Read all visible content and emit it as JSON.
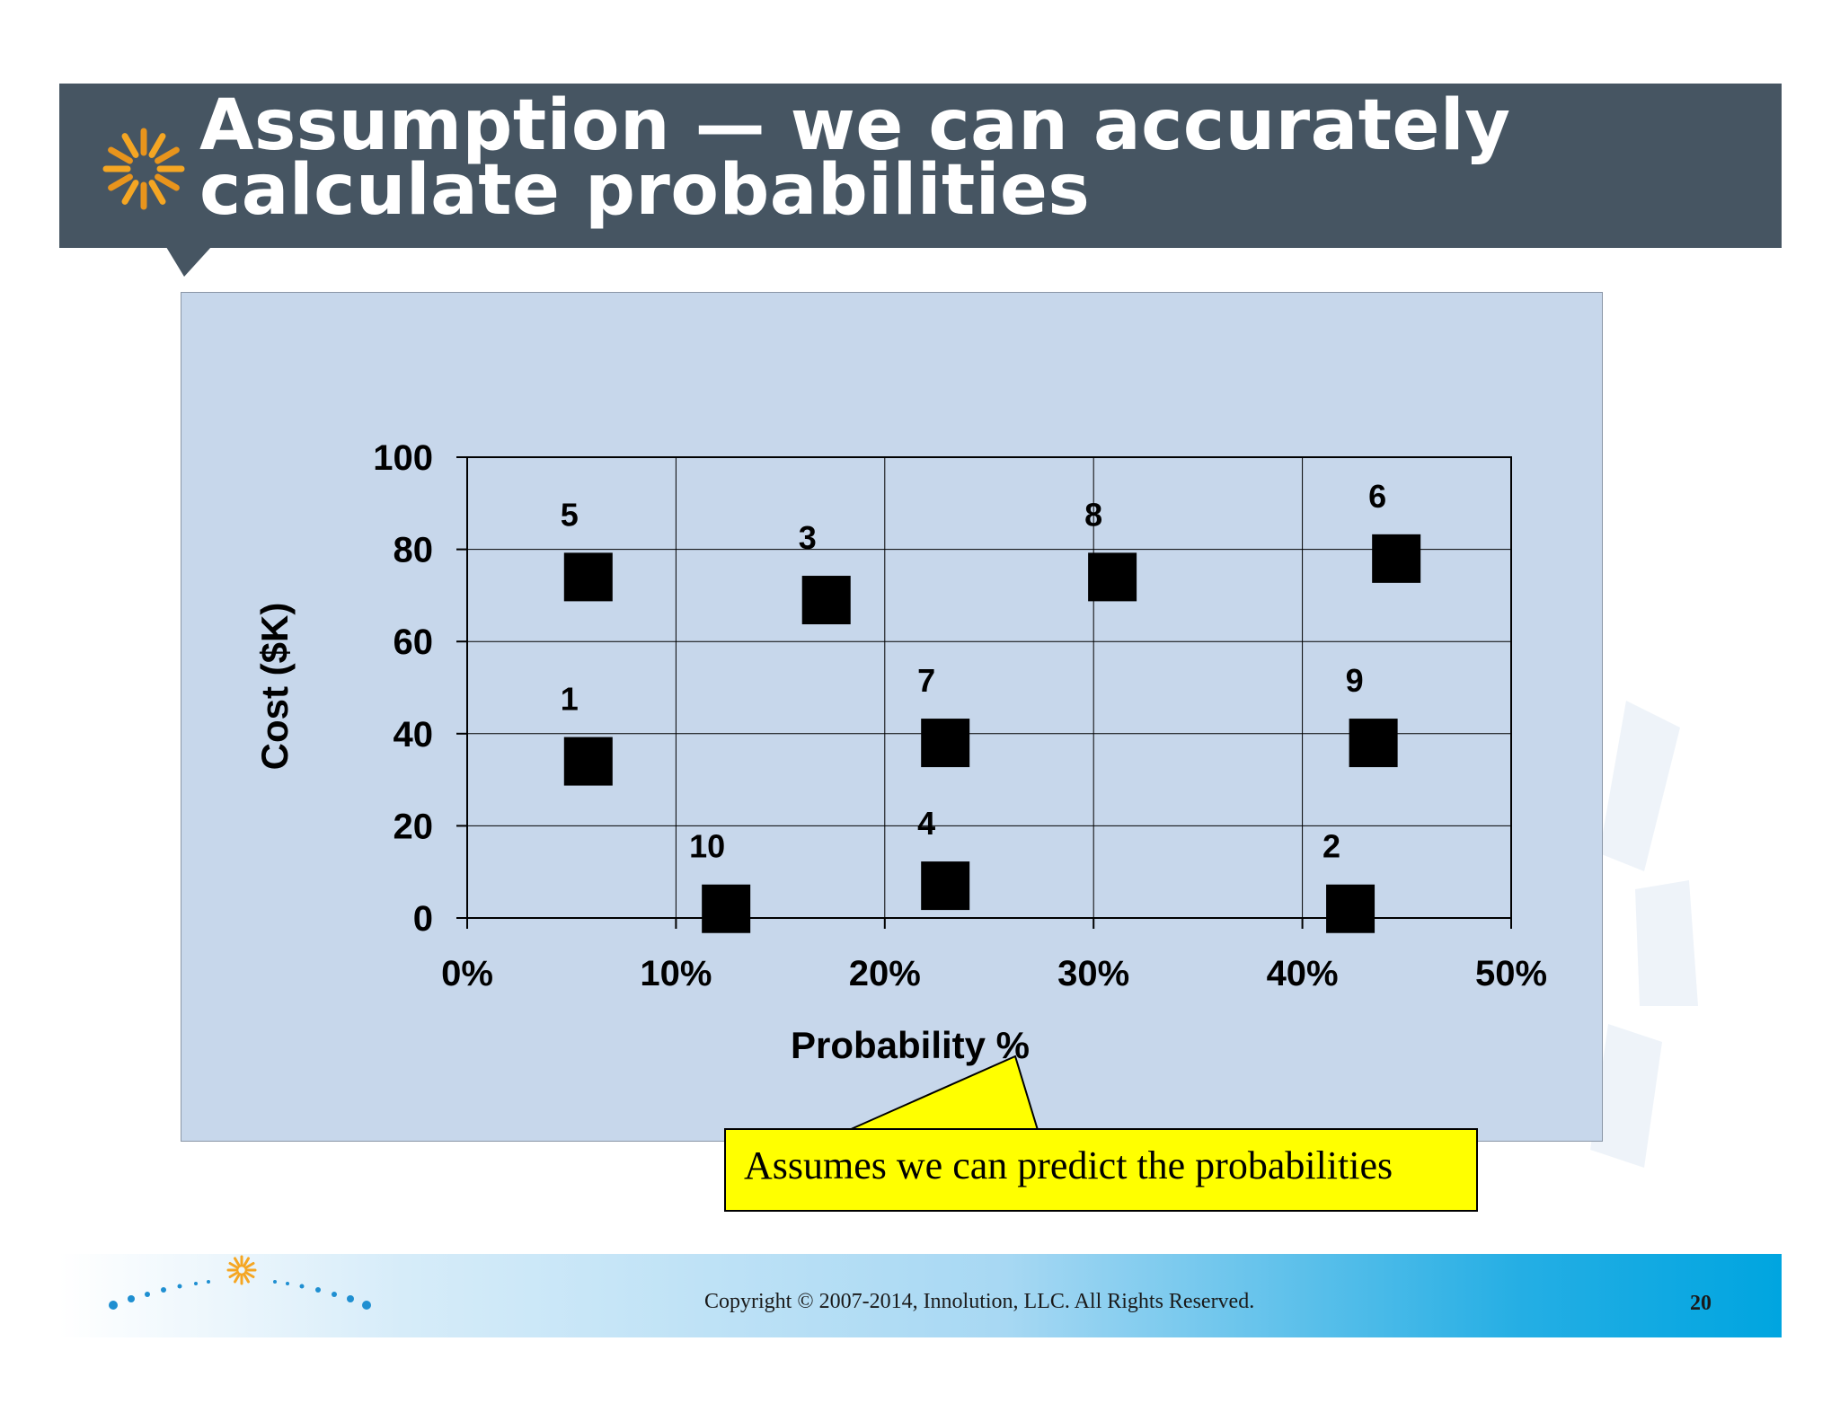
{
  "slide": {
    "title_line1": "Assumption — we can accurately",
    "title_line2": "calculate probabilities",
    "callout_text": "Assumes we can predict the probabilities",
    "copyright": "Copyright © 2007-2014,  Innolution, LLC. All Rights Reserved.",
    "page_number": "20"
  },
  "colors": {
    "title_bar": "#465562",
    "chart_background": "#c7d7eb",
    "marker": "#000000",
    "callout_fill": "#ffff00",
    "logo_orange": "#f5a623",
    "footer_blue": "#00a5e0"
  },
  "chart_data": {
    "type": "scatter",
    "xlabel": "Probability %",
    "ylabel": "Cost ($K)",
    "xlim": [
      0,
      50
    ],
    "ylim": [
      0,
      100
    ],
    "x_ticks": [
      "0%",
      "10%",
      "20%",
      "30%",
      "40%",
      "50%"
    ],
    "y_ticks": [
      "0",
      "20",
      "40",
      "60",
      "80",
      "100"
    ],
    "grid": true,
    "marker": "square",
    "points": [
      {
        "label": "1",
        "x": 5.8,
        "y": 34
      },
      {
        "label": "2",
        "x": 42.3,
        "y": 2
      },
      {
        "label": "3",
        "x": 17.2,
        "y": 69
      },
      {
        "label": "4",
        "x": 22.9,
        "y": 7
      },
      {
        "label": "5",
        "x": 5.8,
        "y": 74
      },
      {
        "label": "6",
        "x": 44.5,
        "y": 78
      },
      {
        "label": "7",
        "x": 22.9,
        "y": 38
      },
      {
        "label": "8",
        "x": 30.9,
        "y": 74
      },
      {
        "label": "9",
        "x": 43.4,
        "y": 38
      },
      {
        "label": "10",
        "x": 12.4,
        "y": 2
      }
    ]
  }
}
